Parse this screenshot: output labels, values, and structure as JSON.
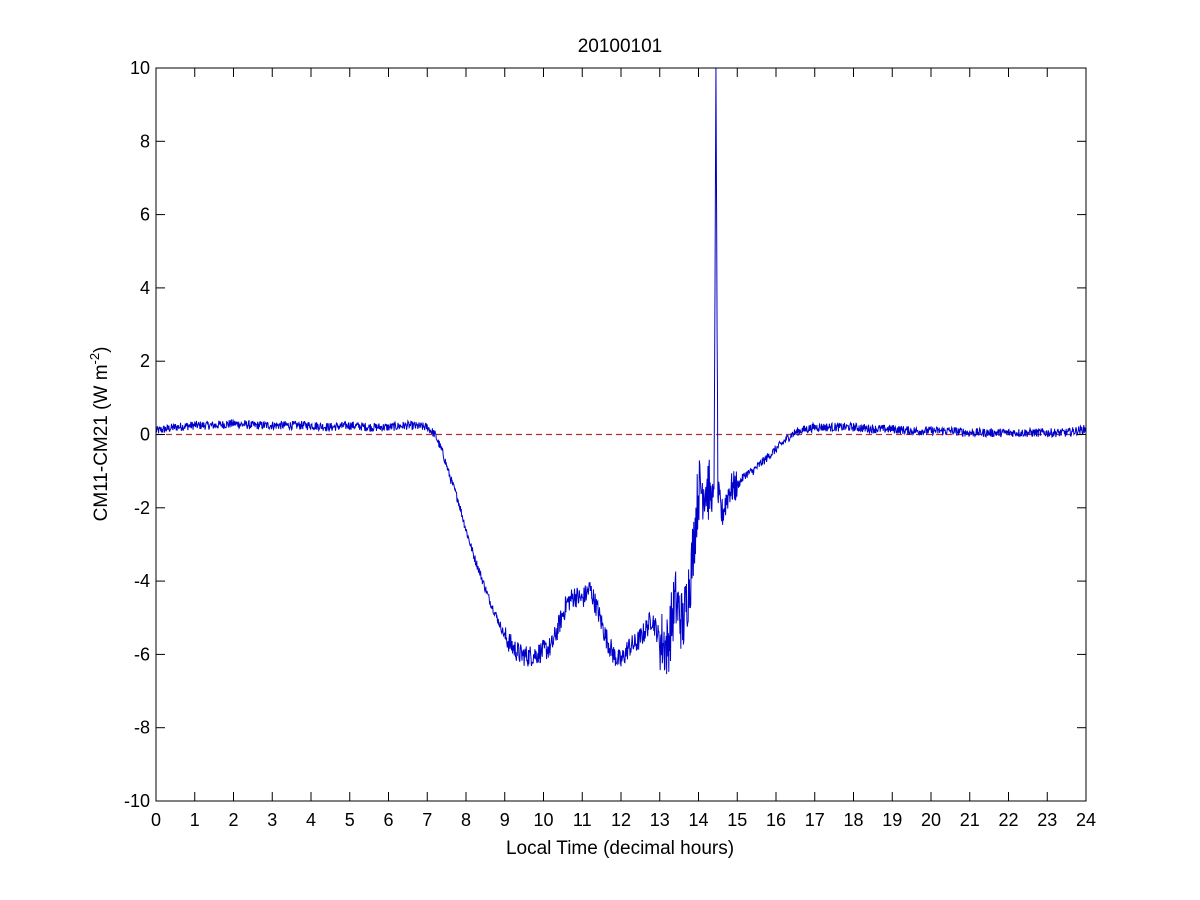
{
  "chart_data": {
    "type": "line",
    "title": "20100101",
    "xlabel": "Local Time (decimal hours)",
    "ylabel_main": "CM11-CM21 (W m",
    "ylabel_sup": "-2",
    "ylabel_close": ")",
    "xlim": [
      0,
      24
    ],
    "ylim": [
      -10,
      10
    ],
    "x_ticks": [
      0,
      1,
      2,
      3,
      4,
      5,
      6,
      7,
      8,
      9,
      10,
      11,
      12,
      13,
      14,
      15,
      16,
      17,
      18,
      19,
      20,
      21,
      22,
      23,
      24
    ],
    "y_ticks": [
      -10,
      -8,
      -6,
      -4,
      -2,
      0,
      2,
      4,
      6,
      8,
      10
    ],
    "grid": false,
    "reference_line": {
      "y": 0,
      "color": "#b03030",
      "style": "dashed"
    },
    "series": [
      {
        "color": "#0000cc",
        "x": [
          0,
          0.5,
          1,
          1.5,
          2,
          2.5,
          3,
          3.5,
          4,
          4.5,
          5,
          5.5,
          6,
          6.5,
          7,
          7.2,
          7.4,
          7.6,
          7.8,
          8,
          8.2,
          8.4,
          8.6,
          8.8,
          9,
          9.2,
          9.4,
          9.6,
          9.8,
          10,
          10.2,
          10.4,
          10.6,
          10.8,
          11,
          11.2,
          11.4,
          11.6,
          11.8,
          12,
          12.2,
          12.4,
          12.6,
          12.8,
          13,
          13.2,
          13.4,
          13.6,
          13.8,
          14,
          14.2,
          14.4,
          14.45,
          14.5,
          14.6,
          14.8,
          15,
          15.2,
          15.4,
          15.6,
          15.8,
          16,
          16.2,
          16.4,
          16.6,
          16.8,
          17,
          17.5,
          18,
          18.5,
          19,
          19.5,
          20,
          20.5,
          21,
          21.5,
          22,
          22.5,
          23,
          23.5,
          24
        ],
        "y": [
          0.1,
          0.2,
          0.25,
          0.25,
          0.3,
          0.25,
          0.25,
          0.25,
          0.25,
          0.2,
          0.25,
          0.2,
          0.2,
          0.25,
          0.2,
          0,
          -0.5,
          -1.2,
          -1.8,
          -2.6,
          -3.3,
          -3.9,
          -4.5,
          -5,
          -5.5,
          -5.8,
          -6,
          -6.05,
          -6,
          -5.9,
          -5.8,
          -5.2,
          -4.6,
          -4.4,
          -4.5,
          -4.2,
          -4.8,
          -5.5,
          -6,
          -6.2,
          -5.8,
          -5.7,
          -5.4,
          -5,
          -5.6,
          -5.8,
          -4.5,
          -5.2,
          -3.8,
          -1.5,
          -1.4,
          -1.8,
          10,
          -1.6,
          -2.2,
          -1.5,
          -1.4,
          -1.1,
          -1,
          -0.8,
          -0.6,
          -0.4,
          -0.2,
          0,
          0.1,
          0.15,
          0.2,
          0.2,
          0.2,
          0.15,
          0.15,
          0.1,
          0.1,
          0.1,
          0.05,
          0.05,
          0.05,
          0.05,
          0.05,
          0.05,
          0.15
        ]
      }
    ]
  }
}
